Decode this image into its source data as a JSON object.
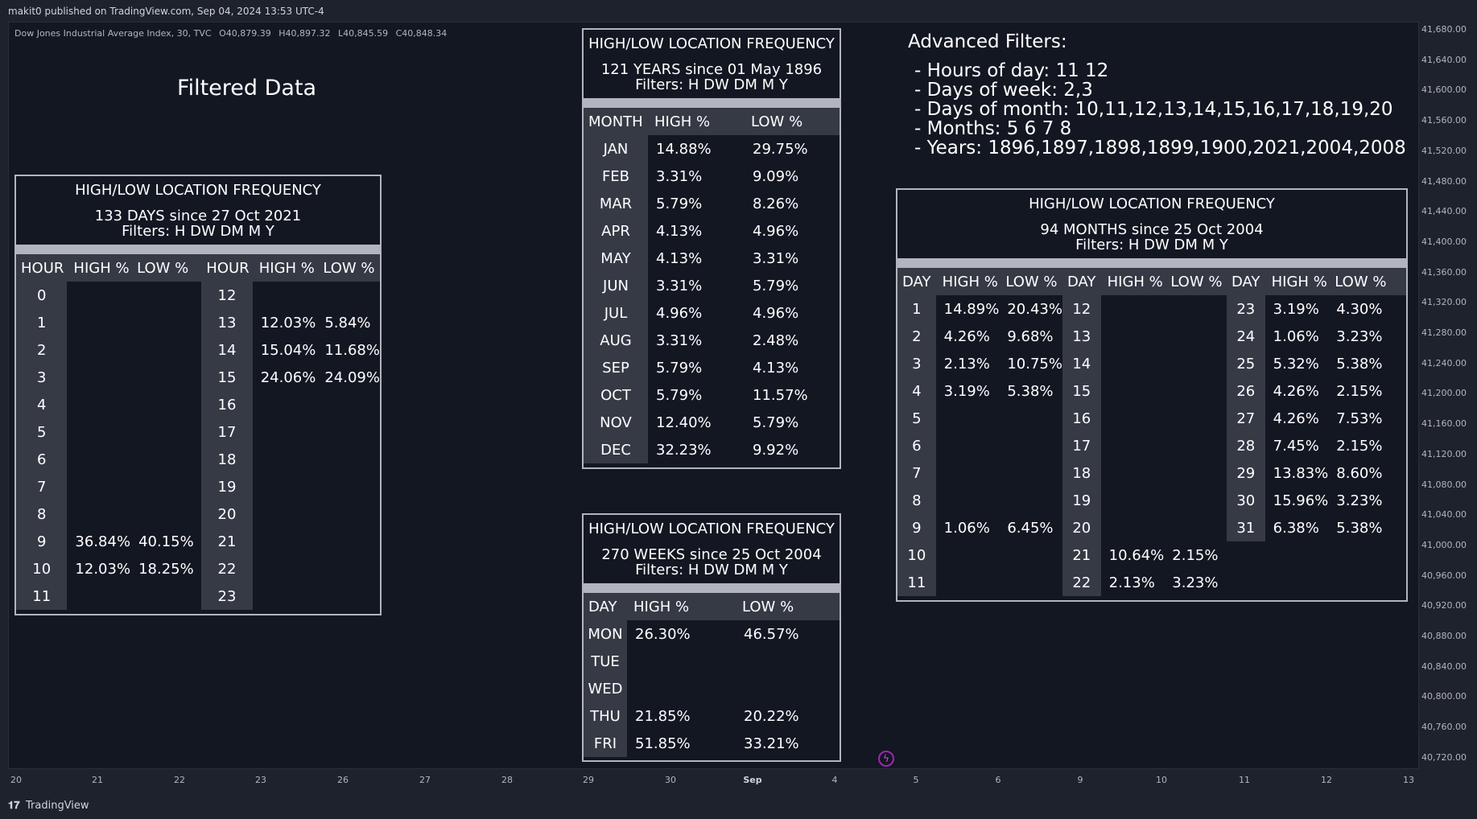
{
  "topbar": {
    "text": "makit0 published on TradingView.com, Sep 04, 2024 13:53 UTC-4"
  },
  "symbol": {
    "name": "Dow Jones Industrial Average Index, 30, TVC",
    "o": "O40,879.39",
    "h": "H40,897.32",
    "l": "L40,845.59",
    "c": "C40,848.34"
  },
  "filtered_title": "Filtered Data",
  "advanced": {
    "title": "Advanced Filters:",
    "lines": [
      "- Hours of day: 11 12",
      "- Days of week: 2,3",
      "- Days of month: 10,11,12,13,14,15,16,17,18,19,20",
      "- Months: 5 6 7 8",
      "- Years: 1896,1897,1898,1899,1900,2021,2004,2008"
    ]
  },
  "hours_table": {
    "title": "HIGH/LOW LOCATION FREQUENCY",
    "subtitle": "133 DAYS since 27 Oct 2021",
    "filters": "Filters: H DW DM M Y",
    "headers": [
      "HOUR",
      "HIGH %",
      "LOW %",
      "HOUR",
      "HIGH %",
      "LOW %"
    ],
    "rows": [
      [
        "0",
        "",
        "",
        "12",
        "",
        ""
      ],
      [
        "1",
        "",
        "",
        "13",
        "12.03%",
        "5.84%"
      ],
      [
        "2",
        "",
        "",
        "14",
        "15.04%",
        "11.68%"
      ],
      [
        "3",
        "",
        "",
        "15",
        "24.06%",
        "24.09%"
      ],
      [
        "4",
        "",
        "",
        "16",
        "",
        ""
      ],
      [
        "5",
        "",
        "",
        "17",
        "",
        ""
      ],
      [
        "6",
        "",
        "",
        "18",
        "",
        ""
      ],
      [
        "7",
        "",
        "",
        "19",
        "",
        ""
      ],
      [
        "8",
        "",
        "",
        "20",
        "",
        ""
      ],
      [
        "9",
        "36.84%",
        "40.15%",
        "21",
        "",
        ""
      ],
      [
        "10",
        "12.03%",
        "18.25%",
        "22",
        "",
        ""
      ],
      [
        "11",
        "",
        "",
        "23",
        "",
        ""
      ]
    ]
  },
  "months_table": {
    "title": "HIGH/LOW LOCATION FREQUENCY",
    "subtitle": "121 YEARS since 01 May 1896",
    "filters": "Filters: H DW DM M Y",
    "headers": [
      "MONTH",
      "HIGH %",
      "LOW %"
    ],
    "rows": [
      [
        "JAN",
        "14.88%",
        "29.75%"
      ],
      [
        "FEB",
        "3.31%",
        "9.09%"
      ],
      [
        "MAR",
        "5.79%",
        "8.26%"
      ],
      [
        "APR",
        "4.13%",
        "4.96%"
      ],
      [
        "MAY",
        "4.13%",
        "3.31%"
      ],
      [
        "JUN",
        "3.31%",
        "5.79%"
      ],
      [
        "JUL",
        "4.96%",
        "4.96%"
      ],
      [
        "AUG",
        "3.31%",
        "2.48%"
      ],
      [
        "SEP",
        "5.79%",
        "4.13%"
      ],
      [
        "OCT",
        "5.79%",
        "11.57%"
      ],
      [
        "NOV",
        "12.40%",
        "5.79%"
      ],
      [
        "DEC",
        "32.23%",
        "9.92%"
      ]
    ]
  },
  "weekdays_table": {
    "title": "HIGH/LOW LOCATION FREQUENCY",
    "subtitle": "270 WEEKS since 25 Oct 2004",
    "filters": "Filters: H DW DM M Y",
    "headers": [
      "DAY",
      "HIGH %",
      "LOW %"
    ],
    "rows": [
      [
        "MON",
        "26.30%",
        "46.57%"
      ],
      [
        "TUE",
        "",
        ""
      ],
      [
        "WED",
        "",
        ""
      ],
      [
        "THU",
        "21.85%",
        "20.22%"
      ],
      [
        "FRI",
        "51.85%",
        "33.21%"
      ]
    ]
  },
  "monthdays_table": {
    "title": "HIGH/LOW LOCATION FREQUENCY",
    "subtitle": "94 MONTHS since 25 Oct 2004",
    "filters": "Filters: H DW DM M Y",
    "headers": [
      "DAY",
      "HIGH %",
      "LOW %",
      "DAY",
      "HIGH %",
      "LOW %",
      "DAY",
      "HIGH %",
      "LOW %"
    ],
    "rows": [
      [
        "1",
        "14.89%",
        "20.43%",
        "12",
        "",
        "",
        "23",
        "3.19%",
        "4.30%"
      ],
      [
        "2",
        "4.26%",
        "9.68%",
        "13",
        "",
        "",
        "24",
        "1.06%",
        "3.23%"
      ],
      [
        "3",
        "2.13%",
        "10.75%",
        "14",
        "",
        "",
        "25",
        "5.32%",
        "5.38%"
      ],
      [
        "4",
        "3.19%",
        "5.38%",
        "15",
        "",
        "",
        "26",
        "4.26%",
        "2.15%"
      ],
      [
        "5",
        "",
        "",
        "16",
        "",
        "",
        "27",
        "4.26%",
        "7.53%"
      ],
      [
        "6",
        "",
        "",
        "17",
        "",
        "",
        "28",
        "7.45%",
        "2.15%"
      ],
      [
        "7",
        "",
        "",
        "18",
        "",
        "",
        "29",
        "13.83%",
        "8.60%"
      ],
      [
        "8",
        "",
        "",
        "19",
        "",
        "",
        "30",
        "15.96%",
        "3.23%"
      ],
      [
        "9",
        "1.06%",
        "6.45%",
        "20",
        "",
        "",
        "31",
        "6.38%",
        "5.38%"
      ],
      [
        "10",
        "",
        "",
        "21",
        "10.64%",
        "2.15%",
        "",
        "",
        ""
      ],
      [
        "11",
        "",
        "",
        "22",
        "2.13%",
        "3.23%",
        "",
        "",
        ""
      ]
    ]
  },
  "y_axis": [
    "41,680.00",
    "41,640.00",
    "41,600.00",
    "41,560.00",
    "41,520.00",
    "41,480.00",
    "41,440.00",
    "41,400.00",
    "41,360.00",
    "41,320.00",
    "41,280.00",
    "41,240.00",
    "41,200.00",
    "41,160.00",
    "41,120.00",
    "41,080.00",
    "41,040.00",
    "41,000.00",
    "40,960.00",
    "40,920.00",
    "40,880.00",
    "40,840.00",
    "40,800.00",
    "40,760.00",
    "40,720.00"
  ],
  "x_axis": [
    "20",
    "21",
    "22",
    "23",
    "26",
    "27",
    "28",
    "29",
    "30",
    "Sep",
    "4",
    "5",
    "6",
    "9",
    "10",
    "11",
    "12",
    "13"
  ],
  "footer": {
    "brand": "TradingView"
  }
}
